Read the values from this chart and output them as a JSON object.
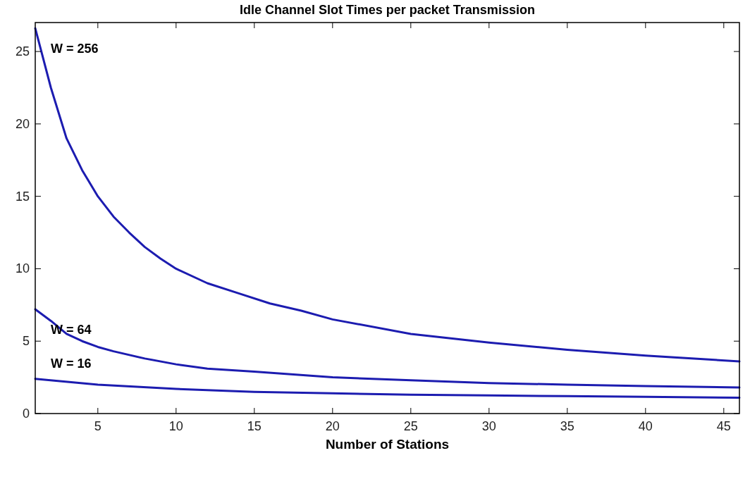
{
  "chart_data": {
    "type": "line",
    "title": "Idle Channel Slot Times per packet Transmission",
    "xlabel": "Number of Stations",
    "xlim": [
      1,
      46
    ],
    "xticks": [
      5,
      10,
      15,
      20,
      25,
      30,
      35,
      40,
      45
    ],
    "ylim": [
      0,
      27
    ],
    "yticks": [
      0,
      5,
      10,
      15,
      20,
      25
    ],
    "grid": false,
    "marker": "none",
    "line_style": "solid",
    "series": [
      {
        "name": "W = 256",
        "color": "#1c1cb0",
        "x": [
          1,
          2,
          3,
          4,
          5,
          6,
          7,
          8,
          9,
          10,
          12,
          14,
          16,
          18,
          20,
          25,
          30,
          35,
          40,
          46
        ],
        "values": [
          26.6,
          22.5,
          19.0,
          16.8,
          15.0,
          13.6,
          12.5,
          11.5,
          10.7,
          10.0,
          9.0,
          8.3,
          7.6,
          7.1,
          6.5,
          5.5,
          4.9,
          4.4,
          4.0,
          3.6
        ]
      },
      {
        "name": "W = 64",
        "color": "#1c1cb0",
        "x": [
          1,
          2,
          3,
          4,
          5,
          6,
          8,
          10,
          12,
          15,
          20,
          25,
          30,
          35,
          40,
          46
        ],
        "values": [
          7.2,
          6.4,
          5.5,
          5.0,
          4.6,
          4.3,
          3.8,
          3.4,
          3.1,
          2.9,
          2.5,
          2.3,
          2.1,
          2.0,
          1.9,
          1.8
        ]
      },
      {
        "name": "W = 16",
        "color": "#1c1cb0",
        "x": [
          1,
          5,
          10,
          15,
          20,
          25,
          30,
          35,
          40,
          46
        ],
        "values": [
          2.4,
          2.0,
          1.7,
          1.5,
          1.4,
          1.3,
          1.25,
          1.2,
          1.15,
          1.1
        ]
      }
    ]
  }
}
